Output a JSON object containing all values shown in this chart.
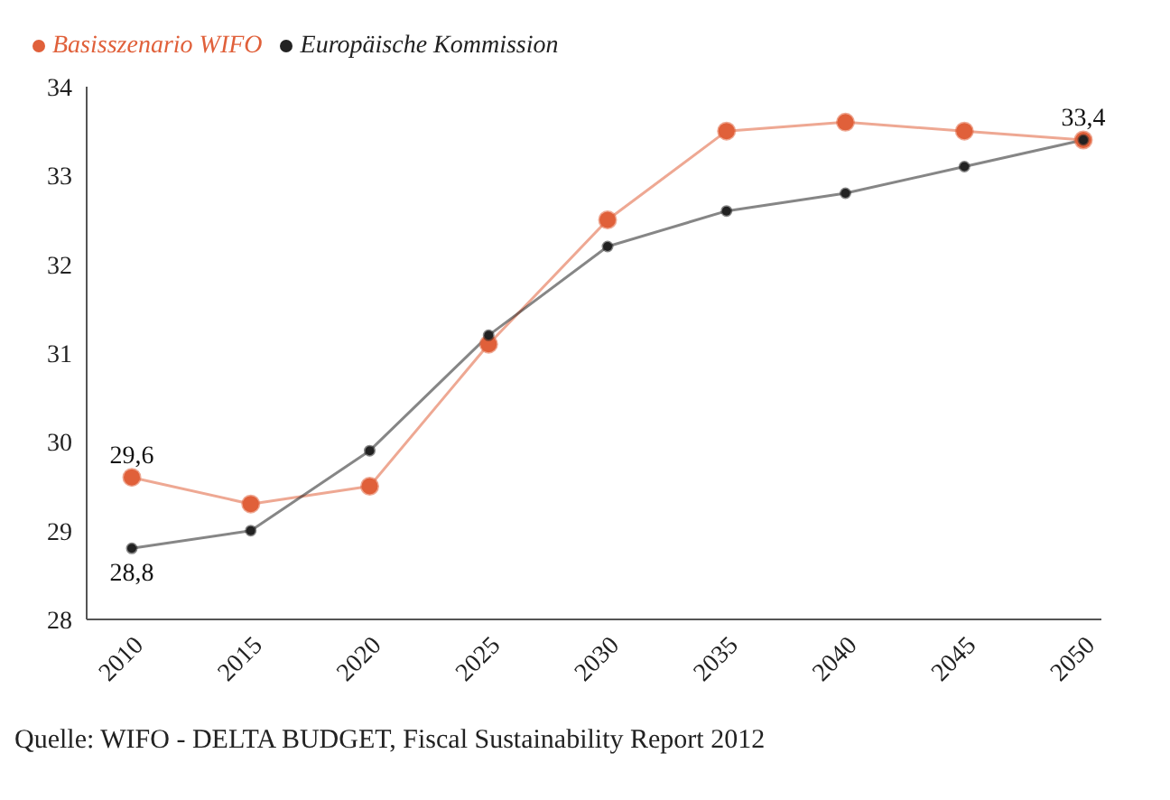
{
  "chart_data": {
    "type": "line",
    "categories": [
      "2010",
      "2015",
      "2020",
      "2025",
      "2030",
      "2035",
      "2040",
      "2045",
      "2050"
    ],
    "series": [
      {
        "name": "Basisszenario WIFO",
        "color": "#e0603a",
        "values": [
          29.6,
          29.3,
          29.5,
          31.1,
          32.5,
          33.5,
          33.6,
          33.5,
          33.4
        ]
      },
      {
        "name": "Europäische Kommission",
        "color": "#222222",
        "values": [
          28.8,
          29.0,
          29.9,
          31.2,
          32.2,
          32.6,
          32.8,
          33.1,
          33.4
        ]
      }
    ],
    "ylim": [
      28,
      34
    ],
    "yticks": [
      28,
      29,
      30,
      31,
      32,
      33,
      34
    ],
    "grid": false,
    "legend": "top left",
    "marker": "circle",
    "annotations": [
      {
        "text": "29,6",
        "x": "2010",
        "y": 29.6
      },
      {
        "text": "28,8",
        "x": "2010",
        "y": 28.8
      },
      {
        "text": "33,4",
        "x": "2050",
        "y": 33.4
      },
      "Quelle: WIFO - DELTA BUDGET, Fiscal Sustainability Report 2012"
    ]
  }
}
